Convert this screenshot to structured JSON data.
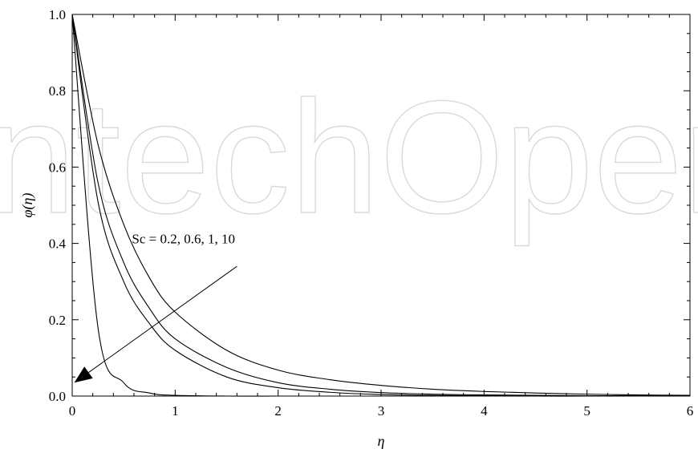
{
  "chart_data": {
    "type": "line",
    "title": "",
    "xlabel": "η",
    "ylabel": "φ(η)",
    "xlim": [
      0,
      6
    ],
    "ylim": [
      0,
      1
    ],
    "x_ticks": [
      "0",
      "1",
      "2",
      "3",
      "4",
      "5",
      "6"
    ],
    "y_ticks": [
      "0.0",
      "0.2",
      "0.4",
      "0.6",
      "0.8",
      "1.0"
    ],
    "grid": false,
    "x": [
      0,
      0.25,
      0.5,
      0.75,
      1,
      1.5,
      2,
      2.5,
      3,
      3.5,
      4,
      4.5,
      5,
      5.5,
      6
    ],
    "series": [
      {
        "values": [
          1.0,
          0.66,
          0.45,
          0.31,
          0.22,
          0.12,
          0.068,
          0.043,
          0.028,
          0.018,
          0.012,
          0.008,
          0.005,
          0.003,
          0.002
        ]
      },
      {
        "values": [
          1.0,
          0.56,
          0.35,
          0.23,
          0.15,
          0.075,
          0.035,
          0.018,
          0.009,
          0.005,
          0.003,
          0.002,
          0.001,
          0.001,
          0.0
        ]
      },
      {
        "values": [
          1.0,
          0.51,
          0.3,
          0.19,
          0.12,
          0.05,
          0.022,
          0.01,
          0.004,
          0.002,
          0.001,
          0.0,
          0.0,
          0.0,
          0.0
        ]
      },
      {
        "values": [
          1.0,
          0.18,
          0.035,
          0.008,
          0.002,
          0.0,
          0.0,
          0.0,
          0.0,
          0.0,
          0.0,
          0.0,
          0.0,
          0.0,
          0.0
        ]
      }
    ],
    "annotations": [
      {
        "text": "Sc  =  0.2,  0.6,  1,  10",
        "arrow_from": [
          1.6,
          0.34
        ],
        "arrow_to": [
          0.02,
          0.035
        ]
      }
    ]
  },
  "watermark": {
    "text": "IntechOpen",
    "color": "#d9d9d9"
  }
}
